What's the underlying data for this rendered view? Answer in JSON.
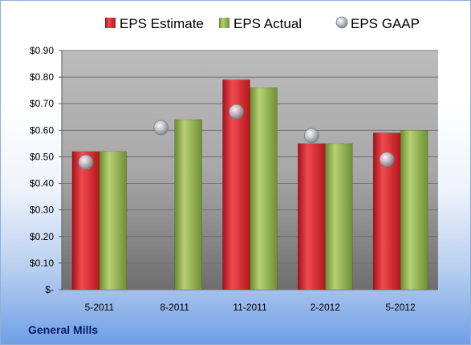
{
  "chart_data": {
    "type": "bar",
    "categories": [
      "5-2011",
      "8-2011",
      "11-2011",
      "2-2012",
      "5-2012"
    ],
    "series": [
      {
        "name": "EPS Estimate",
        "kind": "bar",
        "color": "#d9242a",
        "values": [
          0.52,
          null,
          0.79,
          0.55,
          0.59
        ]
      },
      {
        "name": "EPS Actual",
        "kind": "bar",
        "color": "#8fb04a",
        "values": [
          0.52,
          0.64,
          0.76,
          0.55,
          0.6
        ]
      },
      {
        "name": "EPS GAAP",
        "kind": "marker",
        "color": "#b0b6bd",
        "values": [
          0.48,
          0.61,
          0.67,
          0.58,
          0.49
        ]
      }
    ],
    "ylim": [
      0,
      0.9
    ],
    "yticks": [
      {
        "value": 0.0,
        "label": "$-"
      },
      {
        "value": 0.1,
        "label": "$0.10"
      },
      {
        "value": 0.2,
        "label": "$0.20"
      },
      {
        "value": 0.3,
        "label": "$0.30"
      },
      {
        "value": 0.4,
        "label": "$0.40"
      },
      {
        "value": 0.5,
        "label": "$0.50"
      },
      {
        "value": 0.6,
        "label": "$0.60"
      },
      {
        "value": 0.7,
        "label": "$0.70"
      },
      {
        "value": 0.8,
        "label": "$0.80"
      },
      {
        "value": 0.9,
        "label": "$0.90"
      }
    ],
    "grid": true,
    "legend_position": "top",
    "footer": "General Mills"
  }
}
